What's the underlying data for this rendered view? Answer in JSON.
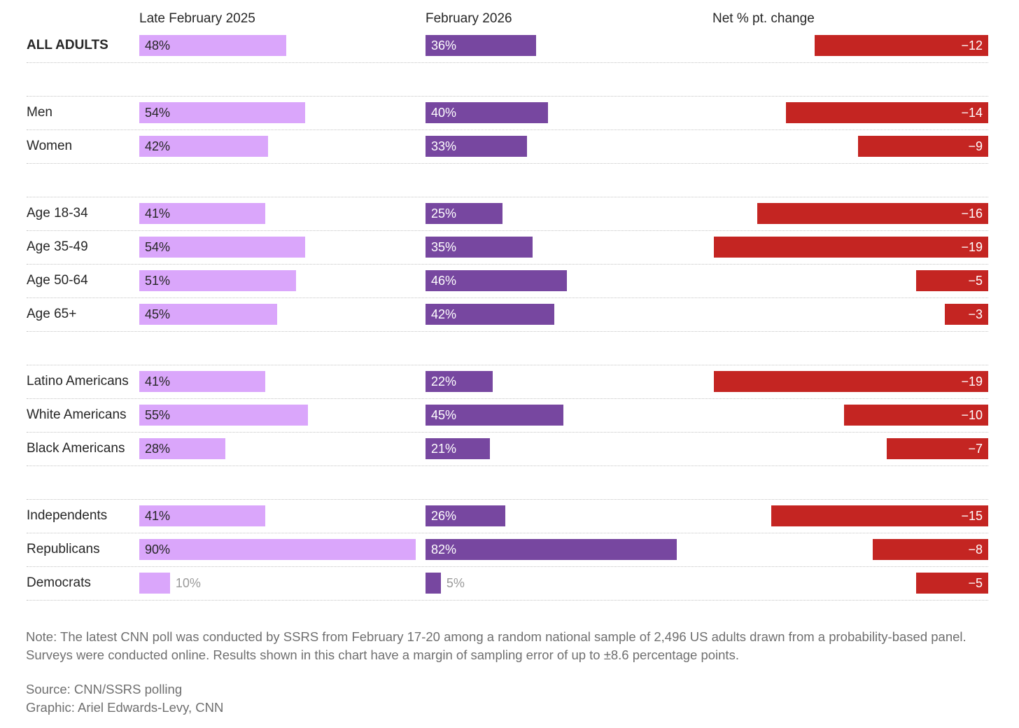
{
  "headers": {
    "col1": "Late February 2025",
    "col2": "February 2026",
    "col3": "Net % pt. change"
  },
  "colors": {
    "bar_2025": "#daa6fb",
    "bar_2026": "#7747a0",
    "bar_change": "#c42522",
    "label_inside": "#ffffff",
    "label_inside_light": "#262626",
    "label_outside": "#9a9a9a"
  },
  "chart_data": {
    "type": "bar",
    "title": "",
    "units": "%",
    "series": [
      {
        "name": "Late February 2025",
        "values": [
          48,
          54,
          42,
          41,
          54,
          51,
          45,
          41,
          55,
          28,
          41,
          90,
          10
        ]
      },
      {
        "name": "February 2026",
        "values": [
          36,
          40,
          33,
          25,
          35,
          46,
          42,
          22,
          45,
          21,
          26,
          82,
          5
        ]
      },
      {
        "name": "Net % pt. change",
        "values": [
          -12,
          -14,
          -9,
          -16,
          -19,
          -5,
          -3,
          -19,
          -10,
          -7,
          -15,
          -8,
          -5
        ]
      }
    ],
    "rows": [
      {
        "label": "ALL ADULTS",
        "v2025": 48,
        "v2025_label": "48%",
        "v2026": 36,
        "v2026_label": "36%",
        "change": -12,
        "change_label": "−12",
        "bold": true,
        "group": 0
      },
      {
        "label": "Men",
        "v2025": 54,
        "v2025_label": "54%",
        "v2026": 40,
        "v2026_label": "40%",
        "change": -14,
        "change_label": "−14",
        "group": 1
      },
      {
        "label": "Women",
        "v2025": 42,
        "v2025_label": "42%",
        "v2026": 33,
        "v2026_label": "33%",
        "change": -9,
        "change_label": "−9",
        "group": 1
      },
      {
        "label": "Age 18-34",
        "v2025": 41,
        "v2025_label": "41%",
        "v2026": 25,
        "v2026_label": "25%",
        "change": -16,
        "change_label": "−16",
        "group": 2
      },
      {
        "label": "Age 35-49",
        "v2025": 54,
        "v2025_label": "54%",
        "v2026": 35,
        "v2026_label": "35%",
        "change": -19,
        "change_label": "−19",
        "group": 2
      },
      {
        "label": "Age 50-64",
        "v2025": 51,
        "v2025_label": "51%",
        "v2026": 46,
        "v2026_label": "46%",
        "change": -5,
        "change_label": "−5",
        "group": 2
      },
      {
        "label": "Age 65+",
        "v2025": 45,
        "v2025_label": "45%",
        "v2026": 42,
        "v2026_label": "42%",
        "change": -3,
        "change_label": "−3",
        "group": 2
      },
      {
        "label": "Latino Americans",
        "v2025": 41,
        "v2025_label": "41%",
        "v2026": 22,
        "v2026_label": "22%",
        "change": -19,
        "change_label": "−19",
        "group": 3
      },
      {
        "label": "White Americans",
        "v2025": 55,
        "v2025_label": "55%",
        "v2026": 45,
        "v2026_label": "45%",
        "change": -10,
        "change_label": "−10",
        "group": 3
      },
      {
        "label": "Black Americans",
        "v2025": 28,
        "v2025_label": "28%",
        "v2026": 21,
        "v2026_label": "21%",
        "change": -7,
        "change_label": "−7",
        "group": 3
      },
      {
        "label": "Independents",
        "v2025": 41,
        "v2025_label": "41%",
        "v2026": 26,
        "v2026_label": "26%",
        "change": -15,
        "change_label": "−15",
        "group": 4
      },
      {
        "label": "Republicans",
        "v2025": 90,
        "v2025_label": "90%",
        "v2026": 82,
        "v2026_label": "82%",
        "change": -8,
        "change_label": "−8",
        "group": 4
      },
      {
        "label": "Democrats",
        "v2025": 10,
        "v2025_label": "10%",
        "v2026": 5,
        "v2026_label": "5%",
        "change": -5,
        "change_label": "−5",
        "group": 4
      }
    ]
  },
  "footer": {
    "note_line1": "Note: The latest CNN poll was conducted by SSRS from February 17-20 among a random national sample of 2,496 US adults drawn from a probability-based panel.",
    "note_line2": "Surveys were conducted online. Results shown in this chart have a margin of sampling error of up to ±8.6 percentage points.",
    "source": "Source: CNN/SSRS polling",
    "graphic": "Graphic: Ariel Edwards-Levy, CNN"
  }
}
